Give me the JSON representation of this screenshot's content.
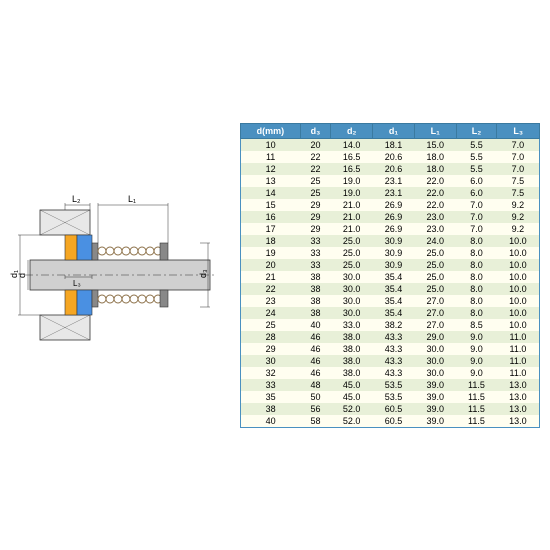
{
  "table": {
    "columns": [
      "d(mm)",
      "d₃",
      "d₂",
      "d₁",
      "L₁",
      "L₂",
      "L₃"
    ],
    "rows": [
      [
        "10",
        "20",
        "14.0",
        "18.1",
        "15.0",
        "5.5",
        "7.0"
      ],
      [
        "11",
        "22",
        "16.5",
        "20.6",
        "18.0",
        "5.5",
        "7.0"
      ],
      [
        "12",
        "22",
        "16.5",
        "20.6",
        "18.0",
        "5.5",
        "7.0"
      ],
      [
        "13",
        "25",
        "19.0",
        "23.1",
        "22.0",
        "6.0",
        "7.5"
      ],
      [
        "14",
        "25",
        "19.0",
        "23.1",
        "22.0",
        "6.0",
        "7.5"
      ],
      [
        "15",
        "29",
        "21.0",
        "26.9",
        "22.0",
        "7.0",
        "9.2"
      ],
      [
        "16",
        "29",
        "21.0",
        "26.9",
        "23.0",
        "7.0",
        "9.2"
      ],
      [
        "17",
        "29",
        "21.0",
        "26.9",
        "23.0",
        "7.0",
        "9.2"
      ],
      [
        "18",
        "33",
        "25.0",
        "30.9",
        "24.0",
        "8.0",
        "10.0"
      ],
      [
        "19",
        "33",
        "25.0",
        "30.9",
        "25.0",
        "8.0",
        "10.0"
      ],
      [
        "20",
        "33",
        "25.0",
        "30.9",
        "25.0",
        "8.0",
        "10.0"
      ],
      [
        "21",
        "38",
        "30.0",
        "35.4",
        "25.0",
        "8.0",
        "10.0"
      ],
      [
        "22",
        "38",
        "30.0",
        "35.4",
        "25.0",
        "8.0",
        "10.0"
      ],
      [
        "23",
        "38",
        "30.0",
        "35.4",
        "27.0",
        "8.0",
        "10.0"
      ],
      [
        "24",
        "38",
        "30.0",
        "35.4",
        "27.0",
        "8.0",
        "10.0"
      ],
      [
        "25",
        "40",
        "33.0",
        "38.2",
        "27.0",
        "8.5",
        "10.0"
      ],
      [
        "28",
        "46",
        "38.0",
        "43.3",
        "29.0",
        "9.0",
        "11.0"
      ],
      [
        "29",
        "46",
        "38.0",
        "43.3",
        "30.0",
        "9.0",
        "11.0"
      ],
      [
        "30",
        "46",
        "38.0",
        "43.3",
        "30.0",
        "9.0",
        "11.0"
      ],
      [
        "32",
        "46",
        "38.0",
        "43.3",
        "30.0",
        "9.0",
        "11.0"
      ],
      [
        "33",
        "48",
        "45.0",
        "53.5",
        "39.0",
        "11.5",
        "13.0"
      ],
      [
        "35",
        "50",
        "45.0",
        "53.5",
        "39.0",
        "11.5",
        "13.0"
      ],
      [
        "38",
        "56",
        "52.0",
        "60.5",
        "39.0",
        "11.5",
        "13.0"
      ],
      [
        "40",
        "58",
        "52.0",
        "60.5",
        "39.0",
        "11.5",
        "13.0"
      ]
    ],
    "header_bg": "#4a90c0",
    "row_even_bg": "#e8f0d8",
    "row_odd_bg": "#fffef0"
  },
  "diagram": {
    "labels": {
      "d": "d",
      "d1": "d₁",
      "d3": "d₃",
      "L1": "L₁",
      "L2": "L₂",
      "L3": "L₃"
    },
    "colors": {
      "shaft": "#d0d0d0",
      "housing": "#e8e8e8",
      "seal1": "#f5a623",
      "seal2": "#4a90e2",
      "spring": "#8b6f47",
      "line": "#333"
    }
  }
}
